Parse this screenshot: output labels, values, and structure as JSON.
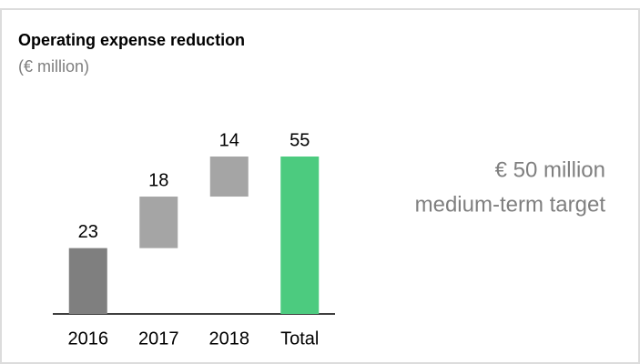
{
  "chart_data": {
    "type": "waterfall",
    "title": "Operating expense reduction",
    "subtitle": "(€ million)",
    "categories": [
      "2016",
      "2017",
      "2018",
      "Total"
    ],
    "values": [
      23,
      18,
      14,
      55
    ],
    "totals": [
      false,
      false,
      false,
      true
    ],
    "colors": [
      "#7f7f7f",
      "#a5a5a5",
      "#a5a5a5",
      "#4ccb7f"
    ],
    "annotations": [
      "€ 50 million",
      "medium-term target"
    ]
  }
}
